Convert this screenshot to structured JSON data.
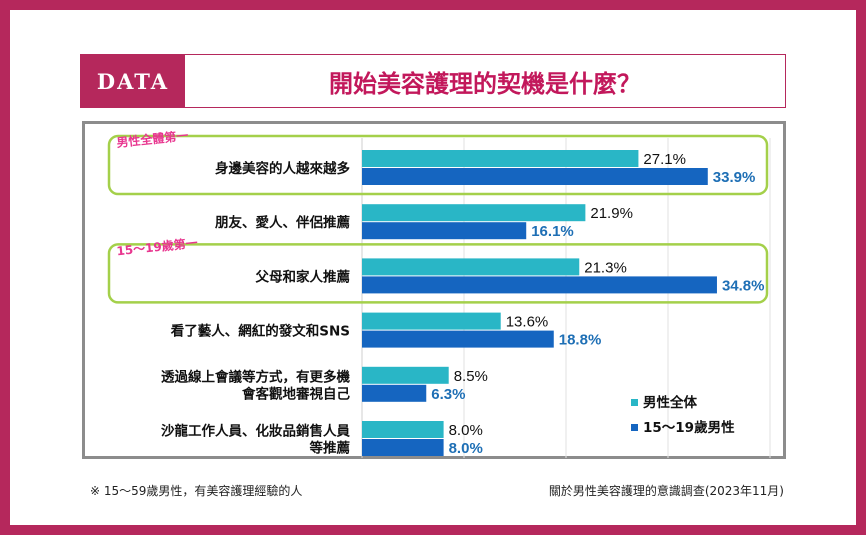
{
  "header": {
    "badge": "DATA",
    "title": "開始美容護理的契機是什麼？"
  },
  "callouts": {
    "first_all": "男性全體第一",
    "first_teen": "15～19歲第一"
  },
  "footnotes": {
    "left": "※ 15～59歲男性，有美容護理經驗的人",
    "right": "關於男性美容護理的意識調查(2023年11月)"
  },
  "colors": {
    "all_men": "#29b6c6",
    "teen_men": "#1565c0",
    "teen_label": "#1e6fb5",
    "highlight_box": "#a4d04a",
    "callout_text": "#e8368f",
    "brand": "#b5285c"
  },
  "chart_data": {
    "type": "bar",
    "orientation": "horizontal",
    "categories": [
      [
        "身邊美容的人越來越多"
      ],
      [
        "朋友、愛人、伴侶推薦"
      ],
      [
        "父母和家人推薦"
      ],
      [
        "看了藝人、網紅的發文和SNS"
      ],
      [
        "透過線上會議等方式，有更多機",
        "會客觀地審視自己"
      ],
      [
        "沙龍工作人員、化妝品銷售人員",
        "等推薦"
      ]
    ],
    "series": [
      {
        "name": "男性全体",
        "values": [
          27.1,
          21.9,
          21.3,
          13.6,
          8.5,
          8.0
        ],
        "labels": [
          "27.1%",
          "21.9%",
          "21.3%",
          "13.6%",
          "8.5%",
          "8.0%"
        ]
      },
      {
        "name": "15～19歲男性",
        "values": [
          33.9,
          16.1,
          34.8,
          18.8,
          6.3,
          8.0
        ],
        "labels": [
          "33.9%",
          "16.1%",
          "34.8%",
          "18.8%",
          "6.3%",
          "8.0%"
        ]
      }
    ],
    "xlim": [
      0,
      40
    ],
    "grid": true,
    "legend_position": "bottom-right"
  }
}
